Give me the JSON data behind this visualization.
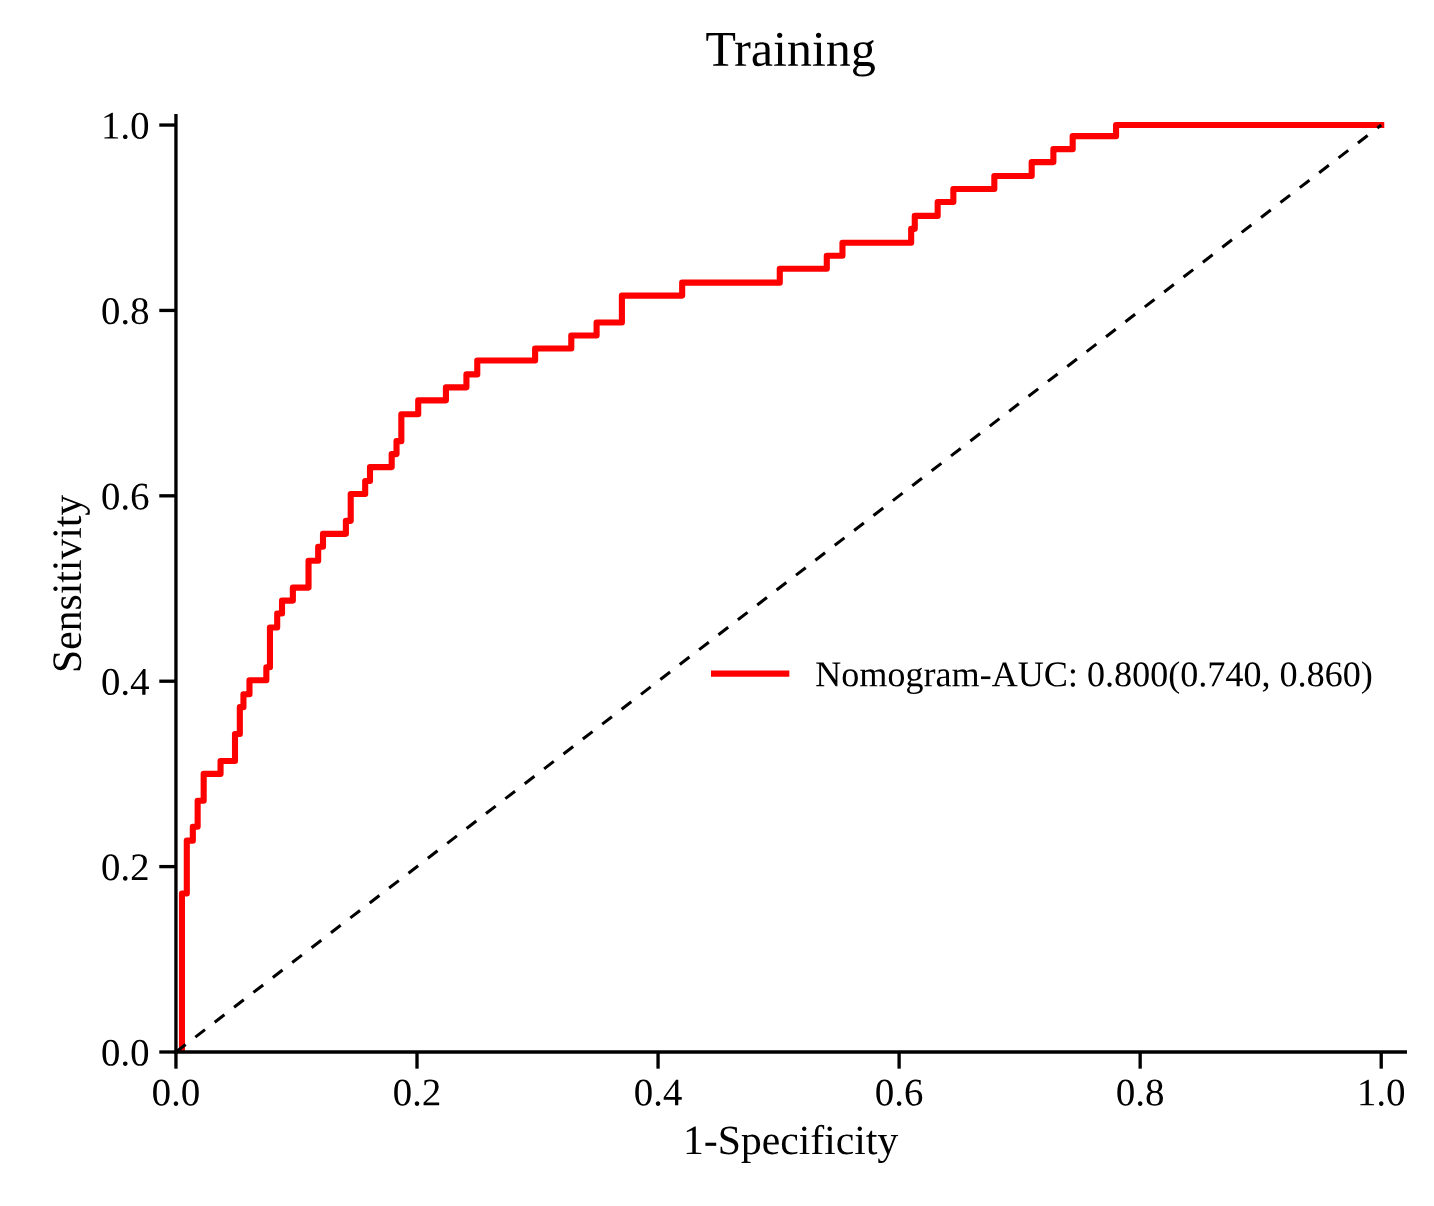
{
  "chart_data": {
    "type": "line",
    "title": "Training",
    "xlabel": "1-Specificity",
    "ylabel": "Sensitivity",
    "xlim": [
      0,
      1.02
    ],
    "ylim": [
      0,
      1.01
    ],
    "xticks": [
      {
        "value": 0,
        "label": "0.0"
      },
      {
        "value": 0.2,
        "label": "0.2"
      },
      {
        "value": 0.4,
        "label": "0.4"
      },
      {
        "value": 0.6,
        "label": "0.6"
      },
      {
        "value": 0.8,
        "label": "0.8"
      },
      {
        "value": 1,
        "label": "1.0"
      }
    ],
    "yticks": [
      {
        "value": 0,
        "label": "0.0"
      },
      {
        "value": 0.2,
        "label": "0.2"
      },
      {
        "value": 0.4,
        "label": "0.4"
      },
      {
        "value": 0.6,
        "label": "0.6"
      },
      {
        "value": 0.8,
        "label": "0.8"
      },
      {
        "value": 1,
        "label": "1.0"
      }
    ],
    "grid": false,
    "legend": "right",
    "marker": "none",
    "series": [
      {
        "name": "Nomogram-AUC: 0.800(0.740, 0.860)",
        "color": "#ff0000",
        "line_style": "solid",
        "x": [
          0,
          0.005,
          0.005,
          0.009,
          0.009,
          0.014,
          0.014,
          0.018,
          0.018,
          0.023,
          0.023,
          0.037,
          0.037,
          0.049,
          0.049,
          0.053,
          0.053,
          0.056,
          0.056,
          0.061,
          0.061,
          0.075,
          0.075,
          0.078,
          0.078,
          0.084,
          0.084,
          0.088,
          0.088,
          0.097,
          0.097,
          0.11,
          0.11,
          0.118,
          0.118,
          0.122,
          0.122,
          0.141,
          0.141,
          0.145,
          0.145,
          0.157,
          0.157,
          0.161,
          0.161,
          0.179,
          0.179,
          0.183,
          0.183,
          0.187,
          0.187,
          0.201,
          0.201,
          0.224,
          0.224,
          0.241,
          0.241,
          0.25,
          0.25,
          0.298,
          0.298,
          0.328,
          0.328,
          0.349,
          0.349,
          0.37,
          0.37,
          0.42,
          0.42,
          0.501,
          0.501,
          0.54,
          0.54,
          0.553,
          0.553,
          0.61,
          0.61,
          0.613,
          0.613,
          0.632,
          0.632,
          0.645,
          0.645,
          0.679,
          0.679,
          0.71,
          0.71,
          0.728,
          0.728,
          0.744,
          0.744,
          0.78,
          0.78,
          1.0
        ],
        "values": [
          0,
          0,
          0.171,
          0.171,
          0.228,
          0.228,
          0.243,
          0.243,
          0.271,
          0.271,
          0.3,
          0.3,
          0.314,
          0.314,
          0.343,
          0.343,
          0.372,
          0.372,
          0.386,
          0.386,
          0.401,
          0.401,
          0.415,
          0.415,
          0.458,
          0.458,
          0.473,
          0.473,
          0.487,
          0.487,
          0.501,
          0.501,
          0.53,
          0.53,
          0.545,
          0.545,
          0.559,
          0.559,
          0.573,
          0.573,
          0.602,
          0.602,
          0.616,
          0.616,
          0.631,
          0.631,
          0.645,
          0.645,
          0.659,
          0.659,
          0.688,
          0.688,
          0.703,
          0.703,
          0.717,
          0.717,
          0.731,
          0.731,
          0.746,
          0.746,
          0.759,
          0.759,
          0.773,
          0.773,
          0.787,
          0.787,
          0.816,
          0.816,
          0.83,
          0.83,
          0.845,
          0.845,
          0.859,
          0.859,
          0.873,
          0.873,
          0.888,
          0.888,
          0.902,
          0.902,
          0.917,
          0.917,
          0.931,
          0.931,
          0.945,
          0.945,
          0.96,
          0.96,
          0.974,
          0.974,
          0.988,
          0.988,
          1.0,
          1.0
        ]
      },
      {
        "color": "#000000",
        "line_style": "dashed",
        "x": [
          0,
          1
        ],
        "values": [
          0,
          1
        ]
      }
    ]
  }
}
